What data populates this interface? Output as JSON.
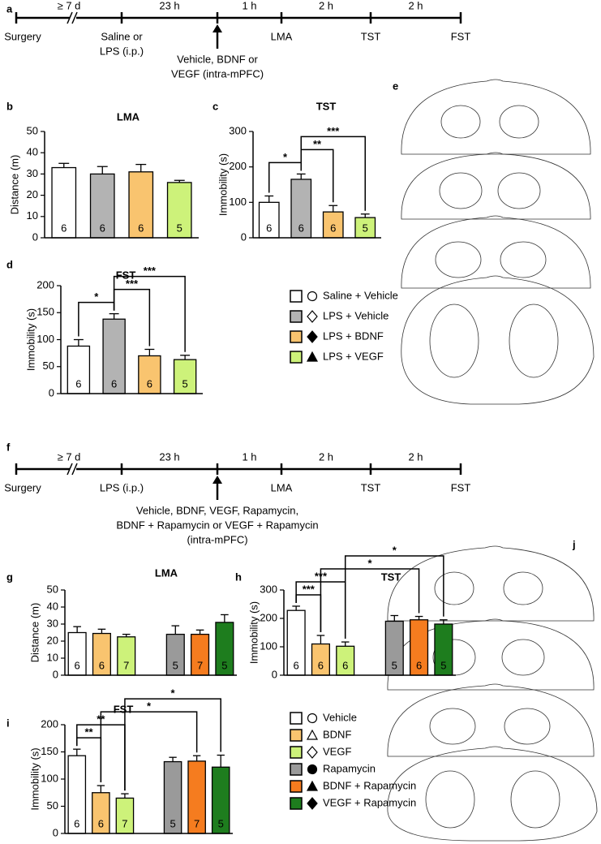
{
  "panel_labels": [
    "a",
    "b",
    "c",
    "d",
    "e",
    "f",
    "g",
    "h",
    "i",
    "j"
  ],
  "timelines": [
    {
      "intervals": [
        "≥ 7 d",
        "23 h",
        "1 h",
        "2 h",
        "2 h"
      ],
      "events": [
        [
          "Surgery"
        ],
        [
          "Saline or",
          "LPS (i.p.)"
        ],
        [
          "LMA"
        ],
        [
          "TST"
        ],
        [
          "FST"
        ]
      ],
      "injection": [
        "Vehicle, BDNF or",
        "VEGF (intra-mPFC)"
      ]
    },
    {
      "intervals": [
        "≥ 7 d",
        "23 h",
        "1 h",
        "2 h",
        "2 h"
      ],
      "events": [
        [
          "Surgery"
        ],
        [
          "LPS (i.p.)"
        ],
        [
          "LMA"
        ],
        [
          "TST"
        ],
        [
          "FST"
        ]
      ],
      "injection": [
        "Vehicle, BDNF, VEGF, Rapamycin,",
        "BDNF + Rapamycin or VEGF + Rapamycin",
        "(intra-mPFC)"
      ]
    }
  ],
  "chart_data": [
    {
      "type": "bar",
      "title": "LMA",
      "ylabel": "Distance (m)",
      "values": [
        33,
        30,
        31,
        26
      ],
      "errors": [
        2,
        3.5,
        3.5,
        1
      ],
      "n": [
        "6",
        "6",
        "6",
        "5"
      ],
      "colors": [
        "#ffffff",
        "#b3b3b3",
        "#f9c46f",
        "#cdf27a"
      ],
      "ylim": [
        0,
        50
      ],
      "yticks": [
        0,
        10,
        20,
        30,
        40,
        50
      ],
      "brackets": []
    },
    {
      "type": "bar",
      "title": "TST",
      "ylabel": "Immobility (s)",
      "values": [
        100,
        165,
        73,
        57
      ],
      "errors": [
        18,
        15,
        18,
        10
      ],
      "n": [
        "6",
        "6",
        "6",
        "5"
      ],
      "colors": [
        "#ffffff",
        "#b3b3b3",
        "#f9c46f",
        "#cdf27a"
      ],
      "ylim": [
        0,
        300
      ],
      "yticks": [
        0,
        100,
        200,
        300
      ],
      "brackets": [
        {
          "groups": [
            0,
            1
          ],
          "label": "*"
        },
        {
          "groups": [
            1,
            2
          ],
          "label": "**"
        },
        {
          "groups": [
            1,
            3
          ],
          "label": "***"
        }
      ]
    },
    {
      "type": "bar",
      "title": "FST",
      "ylabel": "Immobility (s)",
      "values": [
        88,
        138,
        70,
        63
      ],
      "errors": [
        12,
        10,
        12,
        8
      ],
      "n": [
        "6",
        "6",
        "6",
        "5"
      ],
      "colors": [
        "#ffffff",
        "#b3b3b3",
        "#f9c46f",
        "#cdf27a"
      ],
      "ylim": [
        0,
        200
      ],
      "yticks": [
        0,
        50,
        100,
        150,
        200
      ],
      "brackets": [
        {
          "groups": [
            0,
            1
          ],
          "label": "*"
        },
        {
          "groups": [
            1,
            2
          ],
          "label": "***"
        },
        {
          "groups": [
            1,
            3
          ],
          "label": "***"
        }
      ]
    },
    {
      "type": "bar",
      "title": "LMA",
      "ylabel": "Distance (m)",
      "values": [
        25,
        24.5,
        22.5,
        24,
        24,
        31
      ],
      "errors": [
        3.5,
        2.5,
        1.5,
        5,
        2.5,
        4.5
      ],
      "n": [
        "6",
        "6",
        "7",
        "5",
        "7",
        "5"
      ],
      "colors": [
        "#ffffff",
        "#f9c46f",
        "#cdf27a",
        "#9a9a9a",
        "#f57c1f",
        "#1e7d1e"
      ],
      "ylim": [
        0,
        50
      ],
      "yticks": [
        0,
        10,
        20,
        30,
        40,
        50
      ],
      "brackets": []
    },
    {
      "type": "bar",
      "title": "TST",
      "ylabel": "Immobility (s)",
      "values": [
        228,
        110,
        102,
        190,
        195,
        180
      ],
      "errors": [
        15,
        30,
        15,
        20,
        12,
        15
      ],
      "n": [
        "6",
        "6",
        "6",
        "5",
        "6",
        "5"
      ],
      "colors": [
        "#ffffff",
        "#f9c46f",
        "#cdf27a",
        "#9a9a9a",
        "#f57c1f",
        "#1e7d1e"
      ],
      "ylim": [
        0,
        300
      ],
      "yticks": [
        0,
        100,
        200,
        300
      ],
      "brackets": [
        {
          "groups": [
            0,
            1
          ],
          "label": "***"
        },
        {
          "groups": [
            0,
            2
          ],
          "label": "***"
        },
        {
          "groups": [
            1,
            4
          ],
          "label": "*"
        },
        {
          "groups": [
            2,
            5
          ],
          "label": "*"
        }
      ]
    },
    {
      "type": "bar",
      "title": "FST",
      "ylabel": "Immobility (s)",
      "values": [
        143,
        75,
        65,
        132,
        133,
        122
      ],
      "errors": [
        12,
        13,
        8,
        8,
        10,
        22
      ],
      "n": [
        "6",
        "6",
        "7",
        "5",
        "7",
        "5"
      ],
      "colors": [
        "#ffffff",
        "#f9c46f",
        "#cdf27a",
        "#9a9a9a",
        "#f57c1f",
        "#1e7d1e"
      ],
      "ylim": [
        0,
        200
      ],
      "yticks": [
        0,
        50,
        100,
        150,
        200
      ],
      "brackets": [
        {
          "groups": [
            0,
            1
          ],
          "label": "**"
        },
        {
          "groups": [
            0,
            2
          ],
          "label": "**"
        },
        {
          "groups": [
            1,
            4
          ],
          "label": "*"
        },
        {
          "groups": [
            2,
            5
          ],
          "label": "*"
        }
      ]
    }
  ],
  "legends": [
    {
      "entries": [
        "Saline + Vehicle",
        "LPS + Vehicle",
        "LPS + BDNF",
        "LPS + VEGF"
      ],
      "colors": [
        "#ffffff",
        "#b3b3b3",
        "#f9c46f",
        "#cdf27a"
      ],
      "markers": [
        "open-circle",
        "open-diamond",
        "filled-diamond",
        "filled-triangle"
      ]
    },
    {
      "entries": [
        "Vehicle",
        "BDNF",
        "VEGF",
        "Rapamycin",
        "BDNF + Rapamycin",
        "VEGF + Rapamycin"
      ],
      "colors": [
        "#ffffff",
        "#f9c46f",
        "#cdf27a",
        "#9a9a9a",
        "#f57c1f",
        "#1e7d1e"
      ],
      "markers": [
        "open-circle",
        "open-triangle",
        "open-diamond",
        "filled-circle",
        "filled-triangle",
        "filled-diamond"
      ]
    }
  ]
}
